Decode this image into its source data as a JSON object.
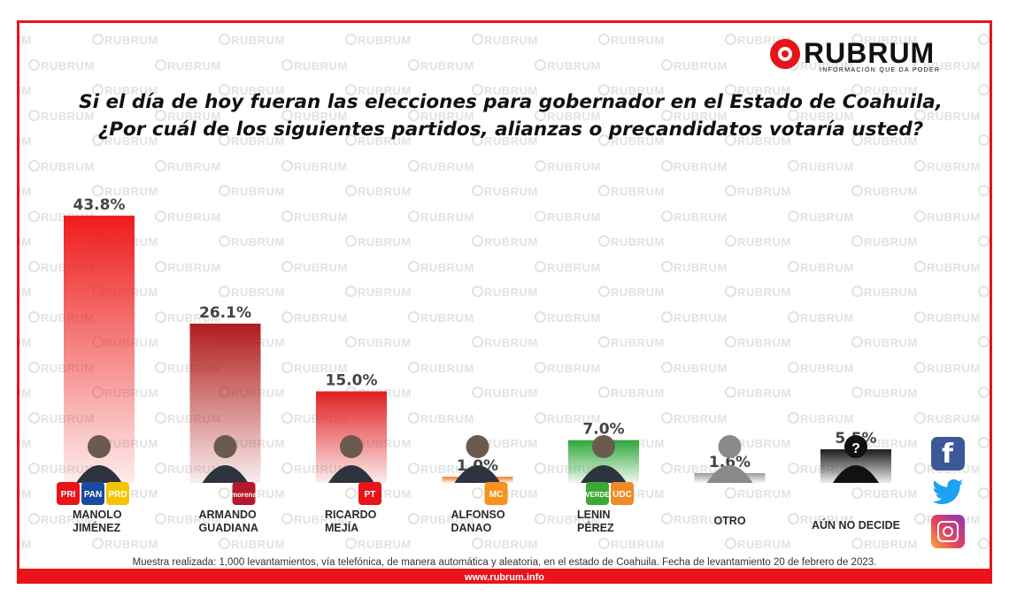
{
  "brand": {
    "name": "RUBRUM",
    "tagline": "INFORMACIÓN QUE DA PODER",
    "watermark": "RUBRUM",
    "website": "www.rubrum.info",
    "color": "#e8141a"
  },
  "question": {
    "line1": "Si el día de hoy fueran las elecciones para gobernador en el Estado de Coahuila,",
    "line2": "¿Por cuál de los siguientes partidos, alianzas o precandidatos votaría usted?"
  },
  "chart_data": {
    "type": "bar",
    "unit": "%",
    "ylim": [
      0,
      50
    ],
    "grid": false,
    "categories": [
      [
        "MANOLO",
        "JIMÉNEZ"
      ],
      [
        "ARMANDO",
        "GUADIANA"
      ],
      [
        "RICARDO",
        "MEJÍA"
      ],
      [
        "ALFONSO",
        "DANAO"
      ],
      [
        "LENIN",
        "PÉREZ"
      ],
      [
        "OTRO"
      ],
      [
        "AÚN NO DECIDE"
      ]
    ],
    "values": [
      43.8,
      26.1,
      15.0,
      1.0,
      7.0,
      1.6,
      5.5
    ],
    "value_labels": [
      "43.8%",
      "26.1%",
      "15.0%",
      "1.0%",
      "7.0%",
      "1.6%",
      "5.5%"
    ],
    "bar_colors": [
      "#ee1c1c",
      "#b01c1c",
      "#e01f1f",
      "#f07a1e",
      "#2ea83a",
      "#9a9a9a",
      "#1a1a1a"
    ],
    "party_badges": [
      [
        "PRI",
        "PAN",
        "PRD"
      ],
      [
        "morena"
      ],
      [
        "PT"
      ],
      [
        "MC"
      ],
      [
        "VERDE",
        "UDC"
      ],
      [],
      []
    ],
    "badge_colors": {
      "PRI": "#e8141a",
      "PAN": "#1a4aa0",
      "PRD": "#f5c400",
      "morena": "#b5182a",
      "PT": "#e8141a",
      "MC": "#f7931e",
      "VERDE": "#3aaa35",
      "UDC": "#f08a24"
    }
  },
  "footnote": "Muestra realizada: 1,000 levantamientos, vía telefónica, de manera automática y aleatoria, en el estado de Coahuila. Fecha de levantamiento 20 de febrero de 2023.",
  "social": [
    "facebook-icon",
    "twitter-icon",
    "instagram-icon"
  ]
}
